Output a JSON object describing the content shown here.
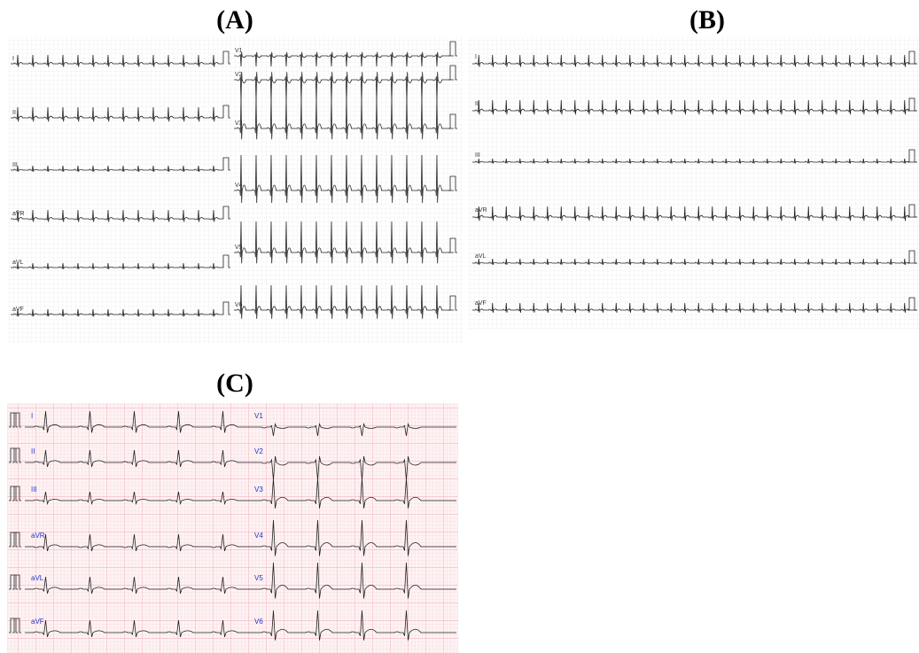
{
  "panels": [
    {
      "title": "(A)",
      "leads": [
        "I",
        "II",
        "III",
        "aVR",
        "aVL",
        "aVF",
        "V1",
        "V2",
        "V3",
        "V4",
        "V5",
        "V6"
      ]
    },
    {
      "title": "(B)",
      "leads": [
        "I",
        "II",
        "III",
        "aVR",
        "aVL",
        "aVF"
      ]
    },
    {
      "title": "(C)",
      "leads": [
        "I",
        "II",
        "III",
        "aVR",
        "aVL",
        "aVF",
        "V1",
        "V2",
        "V3",
        "V4",
        "V5",
        "V6"
      ]
    }
  ]
}
